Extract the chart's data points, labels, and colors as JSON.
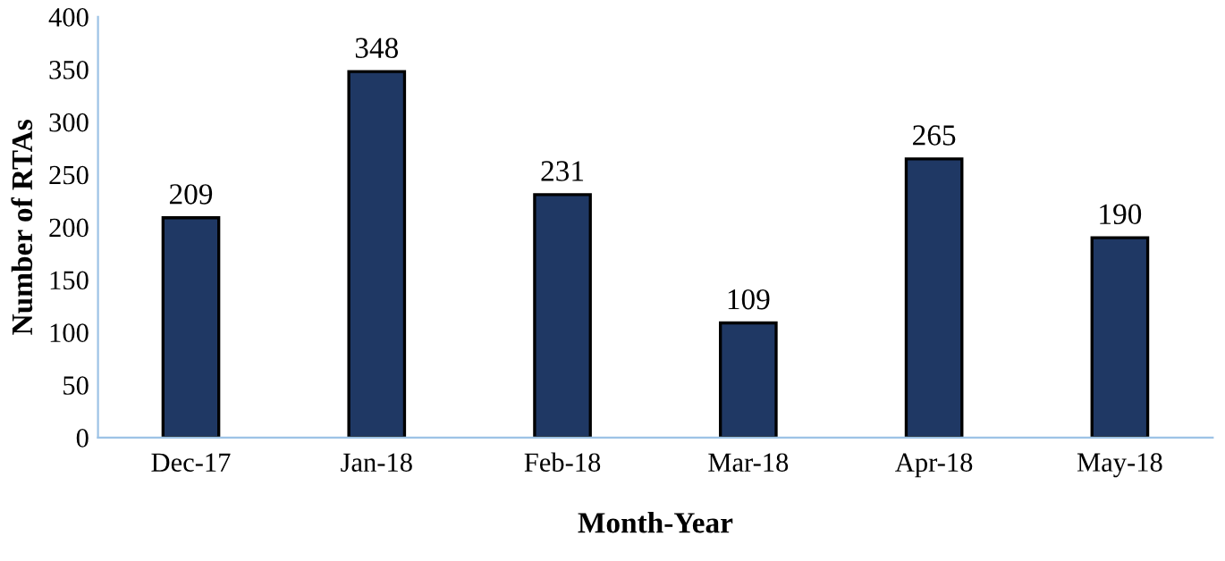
{
  "chart_data": {
    "type": "bar",
    "xlabel": "Month-Year",
    "ylabel": "Number of RTAs",
    "categories": [
      "Dec-17",
      "Jan-18",
      "Feb-18",
      "Mar-18",
      "Apr-18",
      "May-18"
    ],
    "values": [
      209,
      348,
      231,
      109,
      265,
      190
    ],
    "color": "#1f3864",
    "ylim": [
      0,
      400
    ],
    "yticks": [
      0,
      50,
      100,
      150,
      200,
      250,
      300,
      350,
      400
    ],
    "grid": false,
    "data_labels": true
  }
}
